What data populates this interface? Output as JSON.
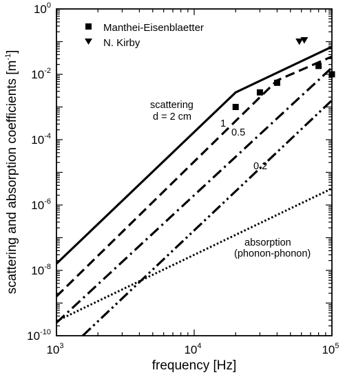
{
  "chart_data": {
    "type": "line",
    "xlabel": "frequency [Hz]",
    "ylabel": "scattering and absorption coefficients [m",
    "ylabel_exp": "-1",
    "ylabel_close": "]",
    "xscale": "log",
    "yscale": "log",
    "xlim": [
      1000,
      100000
    ],
    "ylim": [
      1e-10,
      1
    ],
    "grid": false,
    "legend_position": "top-left",
    "x_ticks": [
      {
        "value": 1000,
        "base": "10",
        "exp": "3"
      },
      {
        "value": 10000,
        "base": "10",
        "exp": "4"
      },
      {
        "value": 100000,
        "base": "10",
        "exp": "5"
      }
    ],
    "y_ticks": [
      {
        "value": 1e-10,
        "base": "10",
        "exp": "-10"
      },
      {
        "value": 1e-08,
        "base": "10",
        "exp": "-8"
      },
      {
        "value": 1e-06,
        "base": "10",
        "exp": "-6"
      },
      {
        "value": 0.0001,
        "base": "10",
        "exp": "-4"
      },
      {
        "value": 0.01,
        "base": "10",
        "exp": "-2"
      },
      {
        "value": 1,
        "base": "10",
        "exp": "0"
      }
    ],
    "series": [
      {
        "style": "solid",
        "x": [
          1000,
          20000,
          100000
        ],
        "y": [
          1.6e-08,
          0.0028,
          0.07
        ]
      },
      {
        "style": "dash",
        "x": [
          1000,
          40000,
          100000
        ],
        "y": [
          1.6e-09,
          0.0065,
          0.035
        ]
      },
      {
        "style": "dashdot",
        "x": [
          1000,
          100000
        ],
        "y": [
          2.5e-10,
          0.016
        ]
      },
      {
        "style": "dashdotdot",
        "x": [
          1550,
          100000
        ],
        "y": [
          1e-10,
          0.0016
        ]
      },
      {
        "style": "dot",
        "x": [
          1000,
          100000
        ],
        "y": [
          2.8e-10,
          3.2e-06
        ]
      }
    ],
    "markers": [
      {
        "name": "Manthei-Eisenblaetter",
        "shape": "square",
        "x": [
          20000,
          30000,
          40000,
          80000,
          100000
        ],
        "y": [
          0.001,
          0.0028,
          0.0055,
          0.018,
          0.01
        ]
      },
      {
        "name": "N. Kirby",
        "shape": "triangle-down",
        "x": [
          58000,
          63000
        ],
        "y": [
          0.1,
          0.11
        ]
      }
    ],
    "annotations": {
      "scattering": "scattering",
      "d_label": "d = 2 cm",
      "label_1": "1",
      "label_05": "0.5",
      "label_02": "0.2",
      "absorption": "absorption",
      "phonon": "(phonon-phonon)"
    }
  }
}
